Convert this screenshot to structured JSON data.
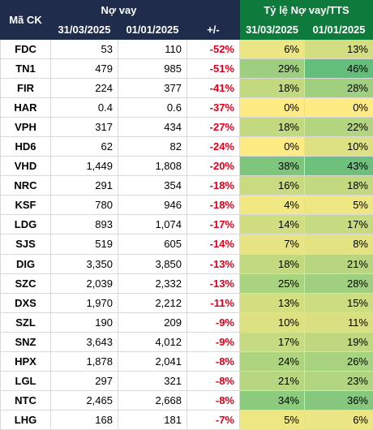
{
  "table": {
    "header": {
      "ticker": "Mã CK",
      "debt": "Nợ vay",
      "change": "+/-",
      "ratio": "Tỷ lệ Nợ vay/TTS",
      "dates": [
        "31/03/2025",
        "01/01/2025",
        "31/03/2025",
        "01/01/2025"
      ]
    },
    "rows": [
      [
        "FDC",
        "53",
        "110",
        "-52%",
        "6%",
        "13%"
      ],
      [
        "TN1",
        "479",
        "985",
        "-51%",
        "29%",
        "46%"
      ],
      [
        "FIR",
        "224",
        "377",
        "-41%",
        "18%",
        "28%"
      ],
      [
        "HAR",
        "0.4",
        "0.6",
        "-37%",
        "0%",
        "0%"
      ],
      [
        "VPH",
        "317",
        "434",
        "-27%",
        "18%",
        "22%"
      ],
      [
        "HD6",
        "62",
        "82",
        "-24%",
        "0%",
        "10%"
      ],
      [
        "VHD",
        "1,449",
        "1,808",
        "-20%",
        "38%",
        "43%"
      ],
      [
        "NRC",
        "291",
        "354",
        "-18%",
        "16%",
        "18%"
      ],
      [
        "KSF",
        "780",
        "946",
        "-18%",
        "4%",
        "5%"
      ],
      [
        "LDG",
        "893",
        "1,074",
        "-17%",
        "14%",
        "17%"
      ],
      [
        "SJS",
        "519",
        "605",
        "-14%",
        "7%",
        "8%"
      ],
      [
        "DIG",
        "3,350",
        "3,850",
        "-13%",
        "18%",
        "21%"
      ],
      [
        "SZC",
        "2,039",
        "2,332",
        "-13%",
        "25%",
        "28%"
      ],
      [
        "DXS",
        "1,970",
        "2,212",
        "-11%",
        "13%",
        "15%"
      ],
      [
        "SZL",
        "190",
        "209",
        "-9%",
        "10%",
        "11%"
      ],
      [
        "SNZ",
        "3,643",
        "4,012",
        "-9%",
        "17%",
        "19%"
      ],
      [
        "HPX",
        "1,878",
        "2,041",
        "-8%",
        "24%",
        "26%"
      ],
      [
        "LGL",
        "297",
        "321",
        "-8%",
        "21%",
        "23%"
      ],
      [
        "NTC",
        "2,465",
        "2,668",
        "-8%",
        "34%",
        "36%"
      ],
      [
        "LHG",
        "168",
        "181",
        "-7%",
        "5%",
        "6%"
      ]
    ]
  }
}
